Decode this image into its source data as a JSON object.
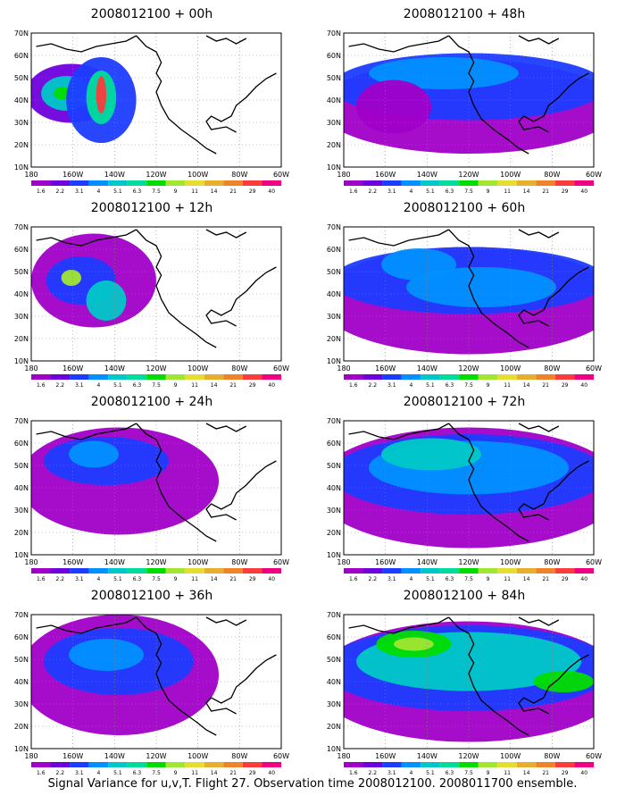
{
  "caption": "Signal Variance for u,v,T. Flight 27. Observation time 2008012100. 2008011700 ensemble.",
  "lat_labels": [
    "70N",
    "60N",
    "50N",
    "40N",
    "30N",
    "20N",
    "10N"
  ],
  "lon_labels": [
    "180",
    "160W",
    "140W",
    "120W",
    "100W",
    "80W",
    "60W"
  ],
  "colorbar": {
    "labels": [
      "1.6",
      "2.2",
      "3.1",
      "4",
      "5.1",
      "6.3",
      "7.5",
      "9",
      "11",
      "14",
      "21",
      "29",
      "40"
    ],
    "colors": [
      "#a000c8",
      "#6e00dc",
      "#1e3cff",
      "#0090ff",
      "#00c8c8",
      "#00dc9c",
      "#00dc00",
      "#a0e632",
      "#e6dc32",
      "#e6af2d",
      "#f08228",
      "#fa3c3c",
      "#f00082"
    ]
  },
  "panels": [
    {
      "title": "2008012100 + 00h",
      "lead": "00h"
    },
    {
      "title": "2008012100 + 48h",
      "lead": "48h"
    },
    {
      "title": "2008012100 + 12h",
      "lead": "12h"
    },
    {
      "title": "2008012100 + 60h",
      "lead": "60h"
    },
    {
      "title": "2008012100 + 24h",
      "lead": "24h"
    },
    {
      "title": "2008012100 + 72h",
      "lead": "72h"
    },
    {
      "title": "2008012100 + 36h",
      "lead": "36h"
    },
    {
      "title": "2008012100 + 84h",
      "lead": "84h"
    }
  ]
}
